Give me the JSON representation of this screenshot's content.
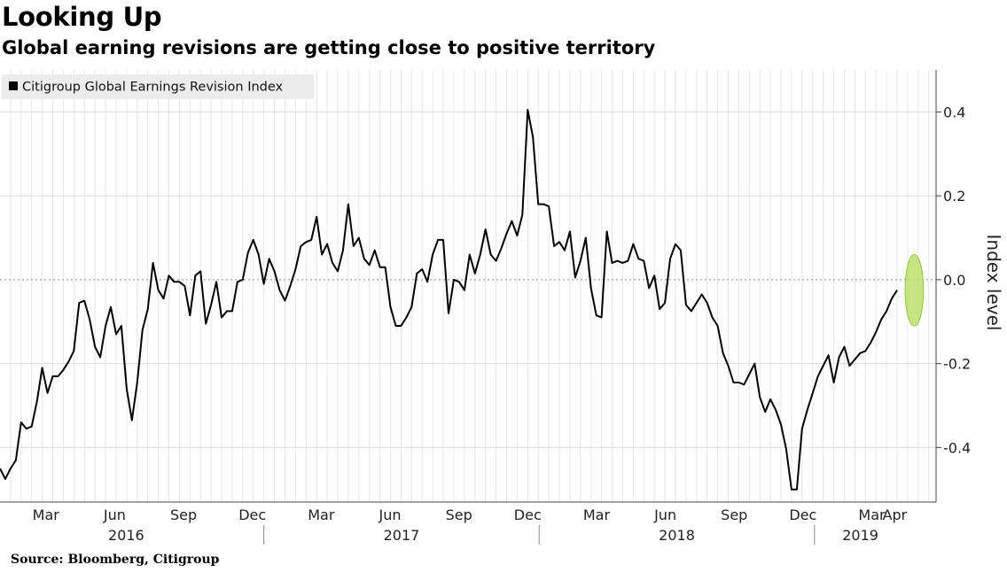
{
  "chart_data": {
    "type": "line",
    "title": "Looking Up",
    "subtitle": "Global earning revisions are getting close to positive territory",
    "source": "Source: Bloomberg, Citigroup",
    "ylabel": "Index level",
    "ylim": [
      -0.53,
      0.5
    ],
    "yticks": [
      -0.4,
      -0.2,
      0.0,
      0.2,
      0.4
    ],
    "ytick_labels": [
      "-0.4",
      "-0.2",
      "0.0",
      "0.2",
      "0.4"
    ],
    "xlim": [
      0,
      40.8
    ],
    "x_unit": "months since 2016-01-01",
    "month_ticks": [
      {
        "label": "Mar",
        "x": 2.0
      },
      {
        "label": "Jun",
        "x": 5.0
      },
      {
        "label": "Sep",
        "x": 8.0
      },
      {
        "label": "Dec",
        "x": 11.0
      },
      {
        "label": "Mar",
        "x": 14.0
      },
      {
        "label": "Jun",
        "x": 17.0
      },
      {
        "label": "Sep",
        "x": 20.0
      },
      {
        "label": "Dec",
        "x": 23.0
      },
      {
        "label": "Mar",
        "x": 26.0
      },
      {
        "label": "Jun",
        "x": 29.0
      },
      {
        "label": "Sep",
        "x": 32.0
      },
      {
        "label": "Dec",
        "x": 35.0
      },
      {
        "label": "Mar",
        "x": 38.0
      },
      {
        "label": "Apr",
        "x": 39.0
      }
    ],
    "year_labels": [
      {
        "label": "2016",
        "x": 5.5
      },
      {
        "label": "2017",
        "x": 17.5
      },
      {
        "label": "2018",
        "x": 29.5
      },
      {
        "label": "2019",
        "x": 37.5
      }
    ],
    "year_separators": [
      11.5,
      23.5,
      35.5
    ],
    "legend": [
      "Citigroup Global Earnings Revision Index"
    ],
    "highlight": {
      "x": 39.85,
      "y": -0.025,
      "rx": 0.4,
      "ry": 0.085,
      "color": "#b4dc5a"
    },
    "series": [
      {
        "name": "Citigroup Global Earnings Revision Index",
        "color": "#000000",
        "points": [
          [
            0.0,
            -0.45
          ],
          [
            0.23,
            -0.475
          ],
          [
            0.46,
            -0.45
          ],
          [
            0.69,
            -0.43
          ],
          [
            0.92,
            -0.34
          ],
          [
            1.15,
            -0.355
          ],
          [
            1.38,
            -0.35
          ],
          [
            1.61,
            -0.29
          ],
          [
            1.84,
            -0.21
          ],
          [
            2.07,
            -0.27
          ],
          [
            2.3,
            -0.23
          ],
          [
            2.53,
            -0.23
          ],
          [
            2.76,
            -0.215
          ],
          [
            2.99,
            -0.195
          ],
          [
            3.22,
            -0.17
          ],
          [
            3.45,
            -0.055
          ],
          [
            3.68,
            -0.05
          ],
          [
            3.91,
            -0.095
          ],
          [
            4.14,
            -0.16
          ],
          [
            4.37,
            -0.185
          ],
          [
            4.6,
            -0.11
          ],
          [
            4.83,
            -0.065
          ],
          [
            5.06,
            -0.13
          ],
          [
            5.29,
            -0.11
          ],
          [
            5.52,
            -0.26
          ],
          [
            5.75,
            -0.335
          ],
          [
            5.98,
            -0.245
          ],
          [
            6.21,
            -0.12
          ],
          [
            6.44,
            -0.07
          ],
          [
            6.67,
            0.04
          ],
          [
            6.9,
            -0.025
          ],
          [
            7.13,
            -0.045
          ],
          [
            7.36,
            0.01
          ],
          [
            7.59,
            -0.005
          ],
          [
            7.82,
            -0.005
          ],
          [
            8.05,
            -0.015
          ],
          [
            8.28,
            -0.085
          ],
          [
            8.51,
            0.01
          ],
          [
            8.74,
            0.02
          ],
          [
            8.97,
            -0.105
          ],
          [
            9.2,
            -0.06
          ],
          [
            9.43,
            -0.005
          ],
          [
            9.66,
            -0.09
          ],
          [
            9.89,
            -0.075
          ],
          [
            10.12,
            -0.075
          ],
          [
            10.35,
            -0.005
          ],
          [
            10.58,
            0.0
          ],
          [
            10.81,
            0.065
          ],
          [
            11.04,
            0.095
          ],
          [
            11.27,
            0.06
          ],
          [
            11.5,
            -0.01
          ],
          [
            11.73,
            0.05
          ],
          [
            11.96,
            0.02
          ],
          [
            12.19,
            -0.025
          ],
          [
            12.42,
            -0.05
          ],
          [
            12.65,
            -0.015
          ],
          [
            12.88,
            0.025
          ],
          [
            13.11,
            0.08
          ],
          [
            13.34,
            0.09
          ],
          [
            13.57,
            0.095
          ],
          [
            13.8,
            0.15
          ],
          [
            14.03,
            0.06
          ],
          [
            14.26,
            0.085
          ],
          [
            14.49,
            0.04
          ],
          [
            14.72,
            0.02
          ],
          [
            14.95,
            0.07
          ],
          [
            15.18,
            0.18
          ],
          [
            15.41,
            0.08
          ],
          [
            15.64,
            0.1
          ],
          [
            15.87,
            0.05
          ],
          [
            16.1,
            0.035
          ],
          [
            16.33,
            0.07
          ],
          [
            16.56,
            0.03
          ],
          [
            16.79,
            0.03
          ],
          [
            17.02,
            -0.065
          ],
          [
            17.25,
            -0.11
          ],
          [
            17.48,
            -0.11
          ],
          [
            17.71,
            -0.09
          ],
          [
            17.94,
            -0.065
          ],
          [
            18.17,
            0.015
          ],
          [
            18.4,
            0.025
          ],
          [
            18.63,
            -0.005
          ],
          [
            18.86,
            0.06
          ],
          [
            19.09,
            0.095
          ],
          [
            19.32,
            0.095
          ],
          [
            19.55,
            -0.08
          ],
          [
            19.78,
            0.0
          ],
          [
            20.01,
            -0.005
          ],
          [
            20.24,
            -0.025
          ],
          [
            20.47,
            0.06
          ],
          [
            20.7,
            0.015
          ],
          [
            20.93,
            0.06
          ],
          [
            21.16,
            0.12
          ],
          [
            21.39,
            0.06
          ],
          [
            21.62,
            0.045
          ],
          [
            21.85,
            0.075
          ],
          [
            22.08,
            0.11
          ],
          [
            22.31,
            0.14
          ],
          [
            22.54,
            0.105
          ],
          [
            22.77,
            0.155
          ],
          [
            23.0,
            0.405
          ],
          [
            23.23,
            0.34
          ],
          [
            23.46,
            0.18
          ],
          [
            23.69,
            0.18
          ],
          [
            23.92,
            0.175
          ],
          [
            24.15,
            0.08
          ],
          [
            24.38,
            0.09
          ],
          [
            24.61,
            0.07
          ],
          [
            24.84,
            0.115
          ],
          [
            25.07,
            0.005
          ],
          [
            25.3,
            0.045
          ],
          [
            25.53,
            0.1
          ],
          [
            25.76,
            -0.02
          ],
          [
            25.99,
            -0.085
          ],
          [
            26.22,
            -0.09
          ],
          [
            26.45,
            0.115
          ],
          [
            26.68,
            0.04
          ],
          [
            26.91,
            0.045
          ],
          [
            27.14,
            0.04
          ],
          [
            27.37,
            0.045
          ],
          [
            27.6,
            0.085
          ],
          [
            27.83,
            0.05
          ],
          [
            28.06,
            0.045
          ],
          [
            28.29,
            -0.02
          ],
          [
            28.52,
            0.01
          ],
          [
            28.75,
            -0.07
          ],
          [
            28.98,
            -0.055
          ],
          [
            29.21,
            0.05
          ],
          [
            29.44,
            0.085
          ],
          [
            29.67,
            0.07
          ],
          [
            29.9,
            -0.06
          ],
          [
            30.13,
            -0.075
          ],
          [
            30.36,
            -0.055
          ],
          [
            30.59,
            -0.035
          ],
          [
            30.82,
            -0.055
          ],
          [
            31.05,
            -0.09
          ],
          [
            31.28,
            -0.11
          ],
          [
            31.51,
            -0.175
          ],
          [
            31.74,
            -0.205
          ],
          [
            31.97,
            -0.245
          ],
          [
            32.2,
            -0.245
          ],
          [
            32.43,
            -0.25
          ],
          [
            32.66,
            -0.225
          ],
          [
            32.89,
            -0.2
          ],
          [
            33.12,
            -0.28
          ],
          [
            33.35,
            -0.315
          ],
          [
            33.58,
            -0.285
          ],
          [
            33.81,
            -0.31
          ],
          [
            34.04,
            -0.345
          ],
          [
            34.27,
            -0.405
          ],
          [
            34.5,
            -0.5
          ],
          [
            34.73,
            -0.5
          ],
          [
            34.96,
            -0.355
          ],
          [
            35.19,
            -0.31
          ],
          [
            35.42,
            -0.27
          ],
          [
            35.65,
            -0.23
          ],
          [
            35.88,
            -0.205
          ],
          [
            36.11,
            -0.18
          ],
          [
            36.34,
            -0.245
          ],
          [
            36.57,
            -0.185
          ],
          [
            36.8,
            -0.16
          ],
          [
            37.03,
            -0.205
          ],
          [
            37.26,
            -0.19
          ],
          [
            37.49,
            -0.175
          ],
          [
            37.72,
            -0.17
          ],
          [
            37.95,
            -0.15
          ],
          [
            38.18,
            -0.125
          ],
          [
            38.41,
            -0.095
          ],
          [
            38.64,
            -0.075
          ],
          [
            38.87,
            -0.045
          ],
          [
            39.1,
            -0.025
          ]
        ]
      }
    ]
  }
}
